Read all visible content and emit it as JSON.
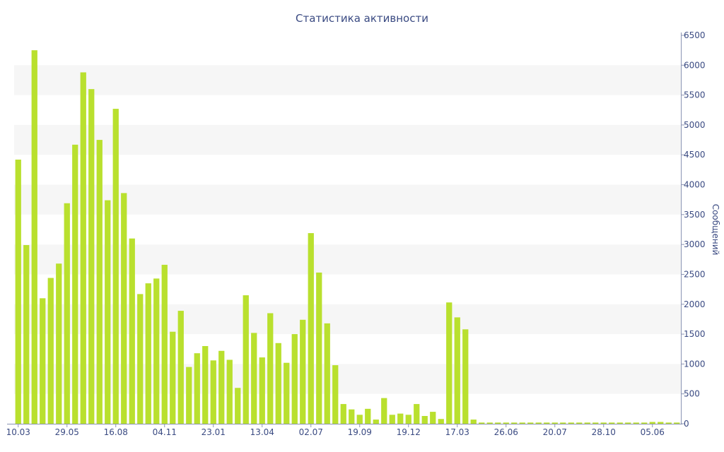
{
  "chart_data": {
    "type": "bar",
    "title": "Статистика активности",
    "ylabel": "Сообщений",
    "xlabel": "",
    "ylim": [
      0,
      6500
    ],
    "yticks": [
      0,
      500,
      1000,
      1500,
      2000,
      2500,
      3000,
      3500,
      4000,
      4500,
      5000,
      5500,
      6000,
      6500
    ],
    "y_axis_side": "right",
    "grid": "alternating horizontal bands",
    "legend": "none",
    "colors": {
      "bar": "#b9e02e",
      "text": "#3a4a82",
      "band": "#f6f6f6",
      "axis": "#8a93b3"
    },
    "x_tick_labels": [
      {
        "index": 0,
        "label": "10.03"
      },
      {
        "index": 6,
        "label": "29.05"
      },
      {
        "index": 12,
        "label": "16.08"
      },
      {
        "index": 18,
        "label": "04.11"
      },
      {
        "index": 24,
        "label": "23.01"
      },
      {
        "index": 30,
        "label": "13.04"
      },
      {
        "index": 36,
        "label": "02.07"
      },
      {
        "index": 42,
        "label": "19.09"
      },
      {
        "index": 48,
        "label": "19.12"
      },
      {
        "index": 54,
        "label": "17.03"
      },
      {
        "index": 60,
        "label": "26.06"
      },
      {
        "index": 66,
        "label": "20.07"
      },
      {
        "index": 72,
        "label": "28.10"
      },
      {
        "index": 78,
        "label": "05.06"
      }
    ],
    "values": [
      4420,
      2990,
      6250,
      2100,
      2440,
      2680,
      3690,
      4670,
      5880,
      5600,
      4750,
      3740,
      5270,
      3860,
      3100,
      2170,
      2350,
      2430,
      2660,
      1540,
      1890,
      950,
      1180,
      1300,
      1060,
      1220,
      1070,
      600,
      2150,
      1520,
      1110,
      1850,
      1350,
      1020,
      1500,
      1740,
      3190,
      2530,
      1680,
      980,
      330,
      240,
      150,
      250,
      70,
      430,
      150,
      170,
      150,
      330,
      130,
      200,
      80,
      2030,
      1780,
      1580,
      70,
      20,
      20,
      20,
      20,
      20,
      20,
      20,
      20,
      20,
      20,
      20,
      20,
      20,
      20,
      20,
      20,
      20,
      20,
      20,
      20,
      20,
      30,
      30,
      20,
      20
    ]
  }
}
